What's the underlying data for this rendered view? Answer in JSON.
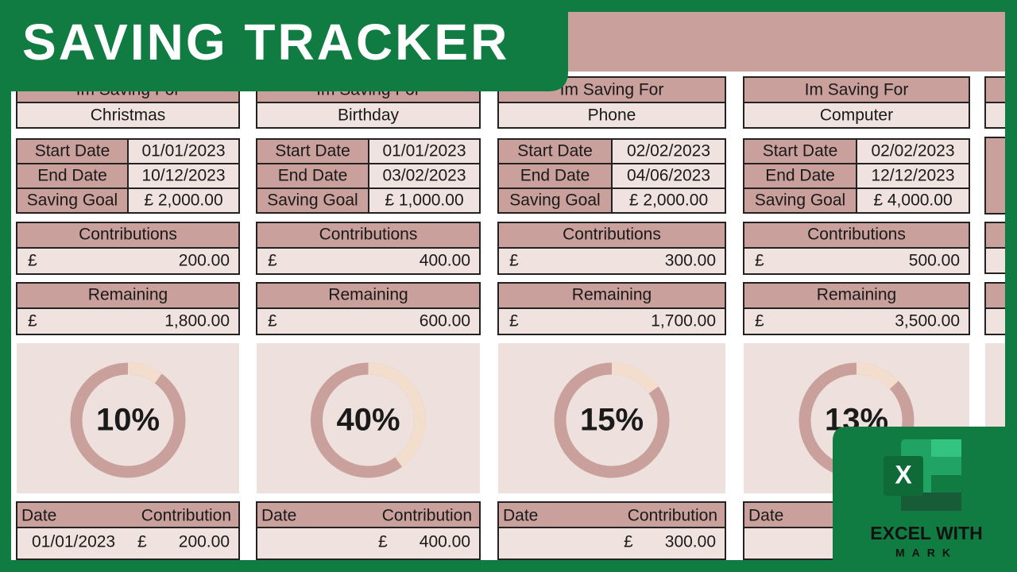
{
  "header": {
    "title": "SAVING TRACKER"
  },
  "trackers": [
    {
      "saving_for_label": "Im Saving For",
      "saving_for": "Christmas",
      "start_date_label": "Start Date",
      "start_date": "01/01/2023",
      "end_date_label": "End Date",
      "end_date": "10/12/2023",
      "goal_label": "Saving Goal",
      "goal": "£ 2,000.00",
      "contributions_label": "Contributions",
      "contributions_currency": "£",
      "contributions": "200.00",
      "remaining_label": "Remaining",
      "remaining_currency": "£",
      "remaining": "1,800.00",
      "progress": {
        "value": 10,
        "label": "10%"
      },
      "log_header": [
        "Date",
        "Contribution"
      ],
      "log_rows": [
        {
          "date": "01/01/2023",
          "currency": "£",
          "amount": "200.00"
        }
      ]
    },
    {
      "saving_for_label": "Im Saving For",
      "saving_for": "Birthday",
      "start_date_label": "Start Date",
      "start_date": "01/01/2023",
      "end_date_label": "End Date",
      "end_date": "03/02/2023",
      "goal_label": "Saving Goal",
      "goal": "£ 1,000.00",
      "contributions_label": "Contributions",
      "contributions_currency": "£",
      "contributions": "400.00",
      "remaining_label": "Remaining",
      "remaining_currency": "£",
      "remaining": "600.00",
      "progress": {
        "value": 40,
        "label": "40%"
      },
      "log_header": [
        "Date",
        "Contribution"
      ],
      "log_rows": [
        {
          "currency": "£",
          "amount": "400.00"
        }
      ]
    },
    {
      "saving_for_label": "Im Saving For",
      "saving_for": "Phone",
      "start_date_label": "Start Date",
      "start_date": "02/02/2023",
      "end_date_label": "End Date",
      "end_date": "04/06/2023",
      "goal_label": "Saving Goal",
      "goal": "£ 2,000.00",
      "contributions_label": "Contributions",
      "contributions_currency": "£",
      "contributions": "300.00",
      "remaining_label": "Remaining",
      "remaining_currency": "£",
      "remaining": "1,700.00",
      "progress": {
        "value": 15,
        "label": "15%"
      },
      "log_header": [
        "Date",
        "Contribution"
      ],
      "log_rows": [
        {
          "currency": "£",
          "amount": "300.00"
        }
      ]
    },
    {
      "saving_for_label": "Im Saving For",
      "saving_for": "Computer",
      "start_date_label": "Start Date",
      "start_date": "02/02/2023",
      "end_date_label": "End Date",
      "end_date": "12/12/2023",
      "goal_label": "Saving Goal",
      "goal": "£ 4,000.00",
      "contributions_label": "Contributions",
      "contributions_currency": "£",
      "contributions": "500.00",
      "remaining_label": "Remaining",
      "remaining_currency": "£",
      "remaining": "3,500.00",
      "progress": {
        "value": 13,
        "label": "13%"
      },
      "log_header": [
        "Date"
      ],
      "log_rows": []
    }
  ],
  "logo": {
    "icon_letter": "X",
    "line1": "EXCEL WITH",
    "line2": "MARK"
  }
}
